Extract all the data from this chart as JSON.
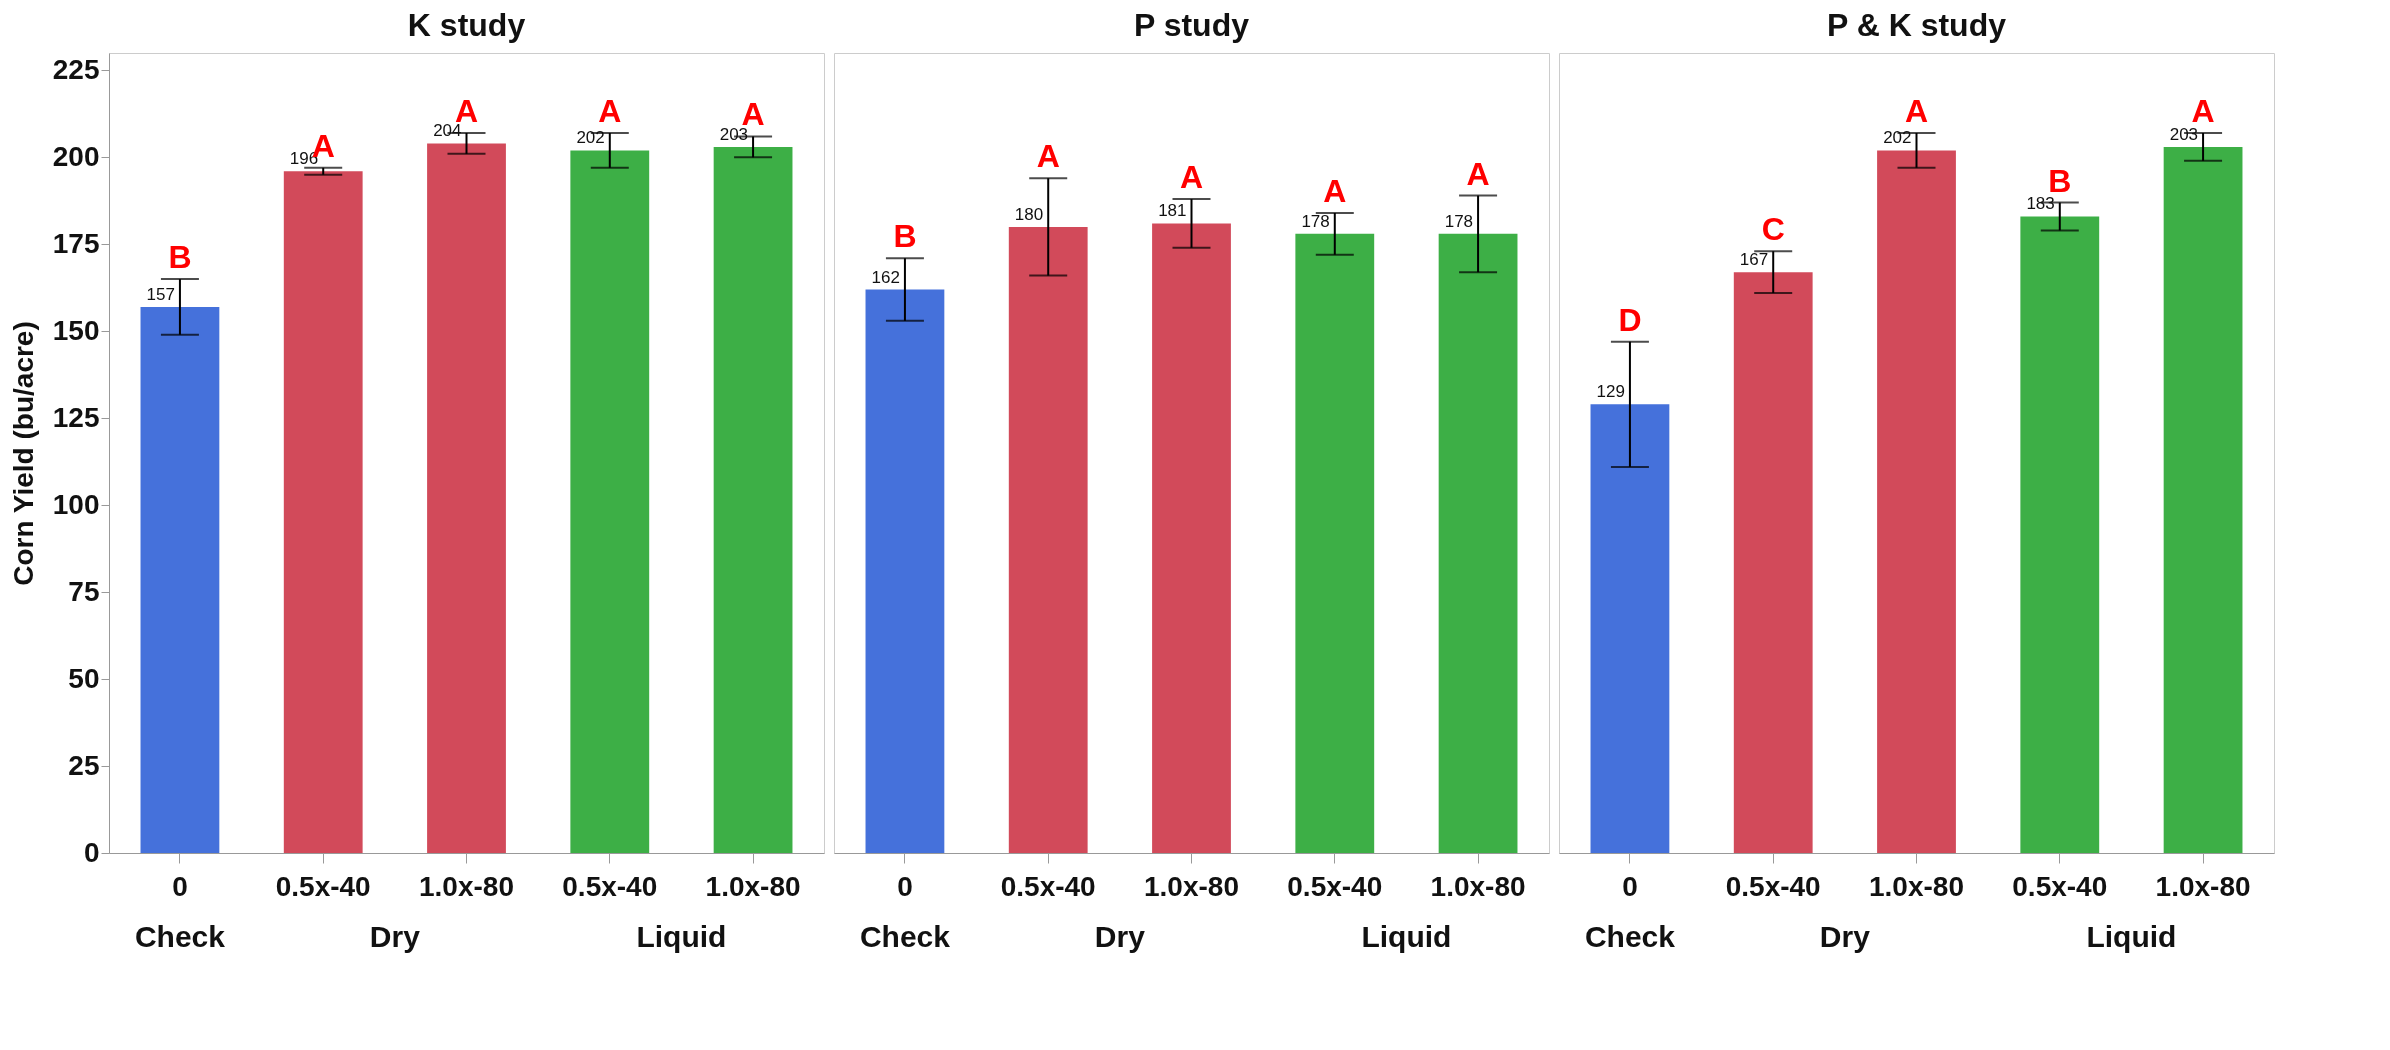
{
  "chart_data": [
    {
      "type": "bar",
      "title": "K study",
      "ylabel": "Corn Yield (bu/acre)",
      "categories": [
        "0",
        "0.5x-40",
        "1.0x-80",
        "0.5x-40",
        "1.0x-80"
      ],
      "values": [
        157,
        196,
        204,
        202,
        203
      ],
      "colors": [
        "#4571db",
        "#d24a5a",
        "#d24a5a",
        "#3daf46",
        "#3daf46"
      ],
      "errors": [
        8,
        1,
        3,
        5,
        3
      ],
      "data_labels": true,
      "ylim": [
        0,
        230
      ],
      "yticks": [
        0,
        25,
        50,
        75,
        100,
        125,
        150,
        175,
        200,
        225
      ],
      "annotations": [
        "B",
        "A",
        "A",
        "A",
        "A",
        "Check",
        "Dry",
        "Liquid"
      ]
    },
    {
      "type": "bar",
      "title": "P study",
      "categories": [
        "0",
        "0.5x-40",
        "1.0x-80",
        "0.5x-40",
        "1.0x-80"
      ],
      "values": [
        162,
        180,
        181,
        178,
        178
      ],
      "colors": [
        "#4571db",
        "#d24a5a",
        "#d24a5a",
        "#3daf46",
        "#3daf46"
      ],
      "errors": [
        9,
        14,
        7,
        6,
        11
      ],
      "data_labels": true,
      "ylim": [
        0,
        230
      ],
      "yticks": [
        0,
        25,
        50,
        75,
        100,
        125,
        150,
        175,
        200,
        225
      ],
      "tick_labels": "x",
      "annotations": [
        "B",
        "A",
        "A",
        "A",
        "A",
        "Check",
        "Dry",
        "Liquid"
      ]
    },
    {
      "type": "bar",
      "title": "P & K study",
      "categories": [
        "0",
        "0.5x-40",
        "1.0x-80",
        "0.5x-40",
        "1.0x-80"
      ],
      "values": [
        129,
        167,
        202,
        183,
        203
      ],
      "colors": [
        "#4571db",
        "#d24a5a",
        "#d24a5a",
        "#3daf46",
        "#3daf46"
      ],
      "errors": [
        18,
        6,
        5,
        4,
        4
      ],
      "data_labels": true,
      "ylim": [
        0,
        230
      ],
      "yticks": [
        0,
        25,
        50,
        75,
        100,
        125,
        150,
        175,
        200,
        225
      ],
      "tick_labels": "x",
      "annotations": [
        "D",
        "C",
        "A",
        "B",
        "A",
        "Check",
        "Dry",
        "Liquid"
      ]
    }
  ]
}
